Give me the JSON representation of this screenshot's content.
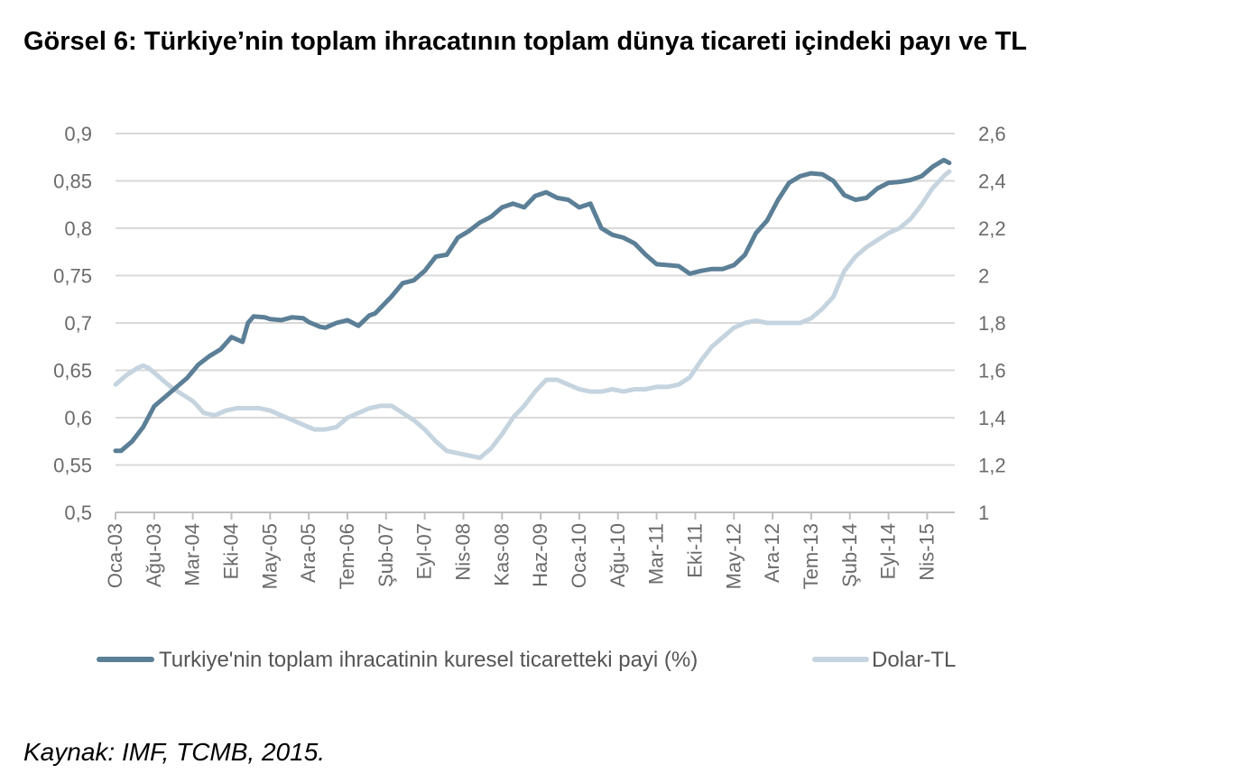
{
  "title": "Görsel 6: Türkiye’nin toplam ihracatının toplam dünya ticareti içindeki payı ve TL",
  "source": "Kaynak: IMF, TCMB, 2015.",
  "colors": {
    "share": "#5b7f96",
    "usd_try": "#c5d4df",
    "grid": "#d9d9d9",
    "axis": "#bfbfbf"
  },
  "chart_data": {
    "type": "line",
    "title": "",
    "x_tick_labels": [
      "Oca-03",
      "Ağu-03",
      "Mar-04",
      "Eki-04",
      "May-05",
      "Ara-05",
      "Tem-06",
      "Şub-07",
      "Eyl-07",
      "Nis-08",
      "Kas-08",
      "Haz-09",
      "Oca-10",
      "Ağu-10",
      "Mar-11",
      "Eki-11",
      "May-12",
      "Ara-12",
      "Tem-13",
      "Şub-14",
      "Eyl-14",
      "Nis-15"
    ],
    "x_tick_step_months": 7,
    "x_range_months": [
      0,
      152
    ],
    "y_left": {
      "ylim": [
        0.5,
        0.9
      ],
      "tick_values": [
        0.5,
        0.55,
        0.6,
        0.65,
        0.7,
        0.75,
        0.8,
        0.85,
        0.9
      ],
      "tick_labels": [
        "0,5",
        "0,55",
        "0,6",
        "0,65",
        "0,7",
        "0,75",
        "0,8",
        "0,85",
        "0,9"
      ]
    },
    "y_right": {
      "ylim": [
        1,
        2.6
      ],
      "tick_values": [
        1,
        1.2,
        1.4,
        1.6,
        1.8,
        2,
        2.2,
        2.4,
        2.6
      ],
      "tick_labels": [
        "1",
        "1,2",
        "1,4",
        "1,6",
        "1,8",
        "2",
        "2,2",
        "2,4",
        "2,6"
      ]
    },
    "series": [
      {
        "name": "Turkiye'nin toplam ihracatinin kuresel ticaretteki payi (%)",
        "axis": "left",
        "month_index": [
          0,
          1,
          3,
          5,
          7,
          9,
          11,
          13,
          15,
          17,
          19,
          21,
          23,
          24,
          25,
          27,
          28,
          30,
          32,
          34,
          35,
          37,
          38,
          40,
          42,
          44,
          46,
          47,
          48,
          50,
          52,
          54,
          56,
          58,
          60,
          62,
          64,
          66,
          68,
          70,
          72,
          74,
          76,
          78,
          80,
          82,
          84,
          86,
          88,
          90,
          92,
          94,
          96,
          98,
          100,
          102,
          104,
          106,
          108,
          110,
          112,
          114,
          116,
          118,
          120,
          122,
          124,
          126,
          128,
          130,
          132,
          134,
          136,
          138,
          140,
          142,
          144,
          146,
          148,
          150,
          151
        ],
        "values": [
          0.565,
          0.565,
          0.575,
          0.59,
          0.612,
          0.622,
          0.632,
          0.642,
          0.656,
          0.665,
          0.672,
          0.685,
          0.68,
          0.7,
          0.707,
          0.706,
          0.704,
          0.703,
          0.706,
          0.705,
          0.701,
          0.696,
          0.695,
          0.7,
          0.703,
          0.697,
          0.708,
          0.71,
          0.716,
          0.728,
          0.742,
          0.745,
          0.755,
          0.77,
          0.772,
          0.79,
          0.797,
          0.806,
          0.812,
          0.822,
          0.826,
          0.822,
          0.834,
          0.838,
          0.832,
          0.83,
          0.822,
          0.826,
          0.8,
          0.793,
          0.79,
          0.784,
          0.772,
          0.762,
          0.761,
          0.76,
          0.752,
          0.755,
          0.757,
          0.757,
          0.761,
          0.772,
          0.795,
          0.808,
          0.83,
          0.848,
          0.855,
          0.858,
          0.857,
          0.85,
          0.835,
          0.83,
          0.832,
          0.842,
          0.848,
          0.849,
          0.851,
          0.855,
          0.865,
          0.872,
          0.869
        ]
      },
      {
        "name": "Dolar-TL",
        "axis": "right",
        "month_index": [
          0,
          2,
          4,
          5,
          6,
          8,
          10,
          12,
          14,
          16,
          18,
          20,
          22,
          24,
          26,
          28,
          30,
          32,
          34,
          36,
          38,
          40,
          42,
          44,
          46,
          48,
          50,
          52,
          54,
          56,
          58,
          60,
          62,
          64,
          66,
          68,
          70,
          72,
          74,
          76,
          78,
          80,
          82,
          84,
          86,
          88,
          90,
          92,
          94,
          96,
          98,
          100,
          102,
          104,
          106,
          108,
          110,
          112,
          114,
          116,
          118,
          120,
          122,
          124,
          126,
          128,
          130,
          132,
          134,
          136,
          138,
          140,
          142,
          144,
          146,
          148,
          150,
          151
        ],
        "values": [
          1.54,
          1.58,
          1.61,
          1.62,
          1.61,
          1.57,
          1.53,
          1.5,
          1.47,
          1.42,
          1.41,
          1.43,
          1.44,
          1.44,
          1.44,
          1.43,
          1.41,
          1.39,
          1.37,
          1.35,
          1.35,
          1.36,
          1.4,
          1.42,
          1.44,
          1.45,
          1.45,
          1.42,
          1.39,
          1.35,
          1.3,
          1.26,
          1.25,
          1.24,
          1.23,
          1.27,
          1.33,
          1.4,
          1.45,
          1.51,
          1.56,
          1.56,
          1.54,
          1.52,
          1.51,
          1.51,
          1.52,
          1.51,
          1.52,
          1.52,
          1.53,
          1.53,
          1.54,
          1.57,
          1.64,
          1.7,
          1.74,
          1.78,
          1.8,
          1.81,
          1.8,
          1.8,
          1.8,
          1.8,
          1.82,
          1.86,
          1.91,
          2.02,
          2.08,
          2.12,
          2.15,
          2.18,
          2.2,
          2.24,
          2.3,
          2.37,
          2.42,
          2.44
        ]
      }
    ],
    "legend_position": "bottom",
    "grid": true
  }
}
